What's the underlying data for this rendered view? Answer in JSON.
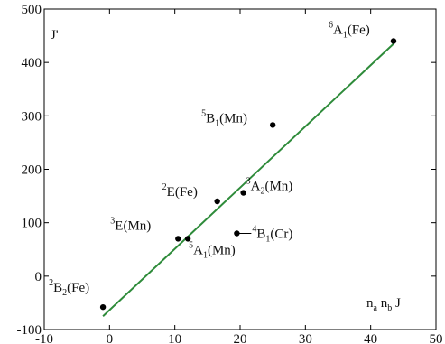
{
  "chart_data": {
    "type": "scatter",
    "xlim": [
      -10,
      50
    ],
    "ylim": [
      -100,
      500
    ],
    "x_ticks": [
      "-10",
      "0",
      "10",
      "20",
      "30",
      "40",
      "50"
    ],
    "y_ticks": [
      "-100",
      "0",
      "100",
      "200",
      "300",
      "400",
      "500"
    ],
    "ylabel": "J'",
    "xlabel": "n_a n_b J",
    "grid": false,
    "points": [
      {
        "x": 43.5,
        "y": 440,
        "sup": "6",
        "base": "A",
        "sub": "1",
        "suffix": "(Fe)"
      },
      {
        "x": 25.0,
        "y": 283,
        "sup": "5",
        "base": "B",
        "sub": "1",
        "suffix": "(Mn)"
      },
      {
        "x": 16.5,
        "y": 140,
        "sup": "2",
        "base": "E(Fe)",
        "sub": "",
        "suffix": ""
      },
      {
        "x": 20.5,
        "y": 156,
        "sup": "3",
        "base": "A",
        "sub": "2",
        "suffix": "(Mn)"
      },
      {
        "x": 10.5,
        "y": 70,
        "sup": "3",
        "base": "E(Mn)",
        "sub": "",
        "suffix": ""
      },
      {
        "x": 12.0,
        "y": 70,
        "sup": "5",
        "base": "A",
        "sub": "1",
        "suffix": "(Mn)"
      },
      {
        "x": 19.5,
        "y": 80,
        "sup": "4",
        "base": "B",
        "sub": "1",
        "suffix": "(Cr)"
      },
      {
        "x": -1.0,
        "y": -58,
        "sup": "2",
        "base": "B",
        "sub": "2",
        "suffix": "(Fe)"
      }
    ],
    "fit_line": {
      "x": [
        -1.0,
        43.5
      ],
      "y": [
        -75,
        435
      ],
      "color": "#2e8b3a"
    }
  }
}
